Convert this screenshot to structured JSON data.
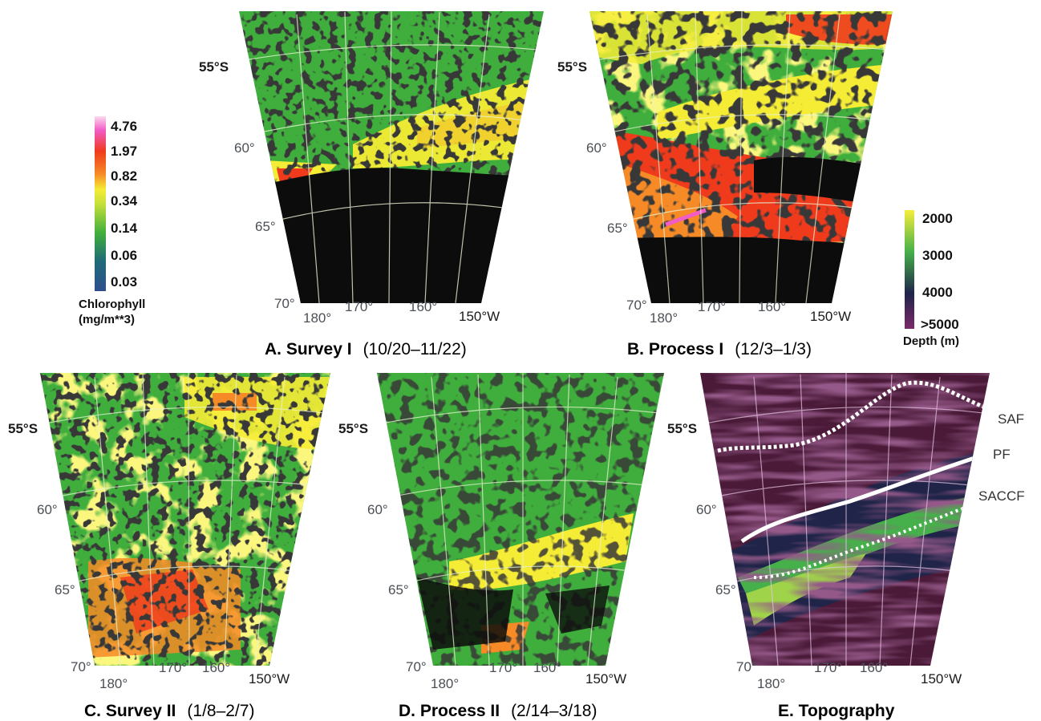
{
  "panels": [
    {
      "id": "A",
      "caption_bold": "A. Survey I",
      "caption_dates": "(10/20–11/22)"
    },
    {
      "id": "B",
      "caption_bold": "B. Process I",
      "caption_dates": "(12/3–1/3)"
    },
    {
      "id": "C",
      "caption_bold": "C. Survey II",
      "caption_dates": "(1/8–2/7)"
    },
    {
      "id": "D",
      "caption_bold": "D. Process II",
      "caption_dates": "(2/14–3/18)"
    },
    {
      "id": "E",
      "caption_bold": "E. Topography",
      "caption_dates": ""
    }
  ],
  "latitude_labels": [
    "55°S",
    "60°",
    "65°",
    "70°"
  ],
  "longitude_labels": [
    "180°",
    "170°",
    "160°",
    "150°W"
  ],
  "chlorophyll_scale": {
    "ticks": [
      "4.76",
      "1.97",
      "0.82",
      "0.34",
      "0.14",
      "0.06",
      "0.03"
    ],
    "title_line1": "Chlorophyll",
    "title_line2": "(mg/m**3)"
  },
  "depth_scale": {
    "ticks": [
      "2000",
      "3000",
      "4000",
      ">5000"
    ],
    "title": "Depth (m)"
  },
  "fronts": [
    "SAF",
    "PF",
    "SACCF"
  ],
  "colors": {
    "chl_high": "#f25cc6",
    "chl_red": "#f03a1c",
    "chl_orange": "#f68a26",
    "chl_yellow": "#f5ec35",
    "chl_green": "#3fae3c",
    "chl_blue": "#2d4e8e",
    "no_data": "#0c0c0c",
    "depth_shallow": "#f6ee3a",
    "depth_mid": "#46b04a",
    "depth_deep": "#1f2448",
    "depth_abyss": "#4a1a38"
  }
}
